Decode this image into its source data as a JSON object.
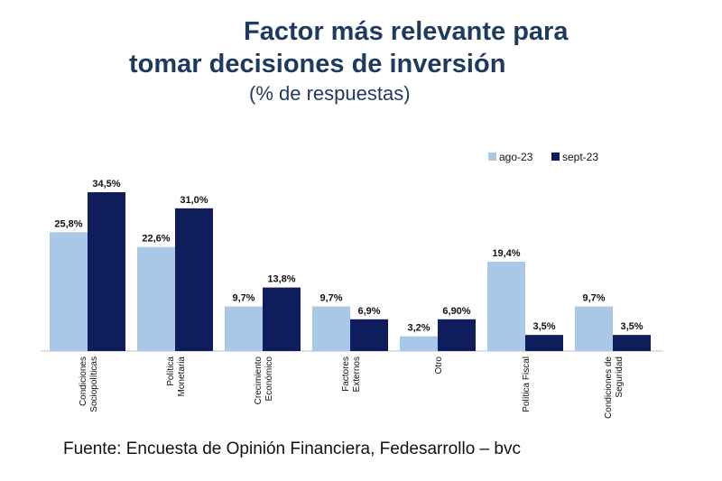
{
  "title_lines": [
    "Factor más relevante para",
    "tomar decisiones de inversión"
  ],
  "subtitle": "(% de respuestas)",
  "source": "Fuente: Encuesta de Opinión Financiera, Fedesarrollo – bvc",
  "colors": {
    "ago": "#a9c7e6",
    "sept": "#0f1d5c",
    "title": "#1f3a5f"
  },
  "chart_data": {
    "type": "bar",
    "title": "Factor más relevante para tomar decisiones de inversión",
    "subtitle": "(% de respuestas)",
    "categories": [
      [
        "Condiciones",
        "Sociopolíticas"
      ],
      [
        "Política",
        "Monetaria"
      ],
      [
        "Crecimiento",
        "Económico"
      ],
      [
        "Factores",
        "Externos"
      ],
      [
        "Otro"
      ],
      [
        "Política Fiscal"
      ],
      [
        "Condiciones de",
        "Seguridad"
      ]
    ],
    "series": [
      {
        "name": "ago-23",
        "values": [
          25.8,
          22.6,
          9.7,
          9.7,
          3.2,
          19.4,
          9.7
        ],
        "labels": [
          "25,8%",
          "22,6%",
          "9,7%",
          "9,7%",
          "3,2%",
          "19,4%",
          "9,7%"
        ]
      },
      {
        "name": "sept-23",
        "values": [
          34.5,
          31.0,
          13.8,
          6.9,
          6.9,
          3.5,
          3.5
        ],
        "labels": [
          "34,5%",
          "31,0%",
          "13,8%",
          "6,9%",
          "6,90%",
          "3,5%",
          "3,5%"
        ]
      }
    ],
    "ylim": [
      0,
      36
    ],
    "grid": false,
    "legend": "top-right"
  }
}
